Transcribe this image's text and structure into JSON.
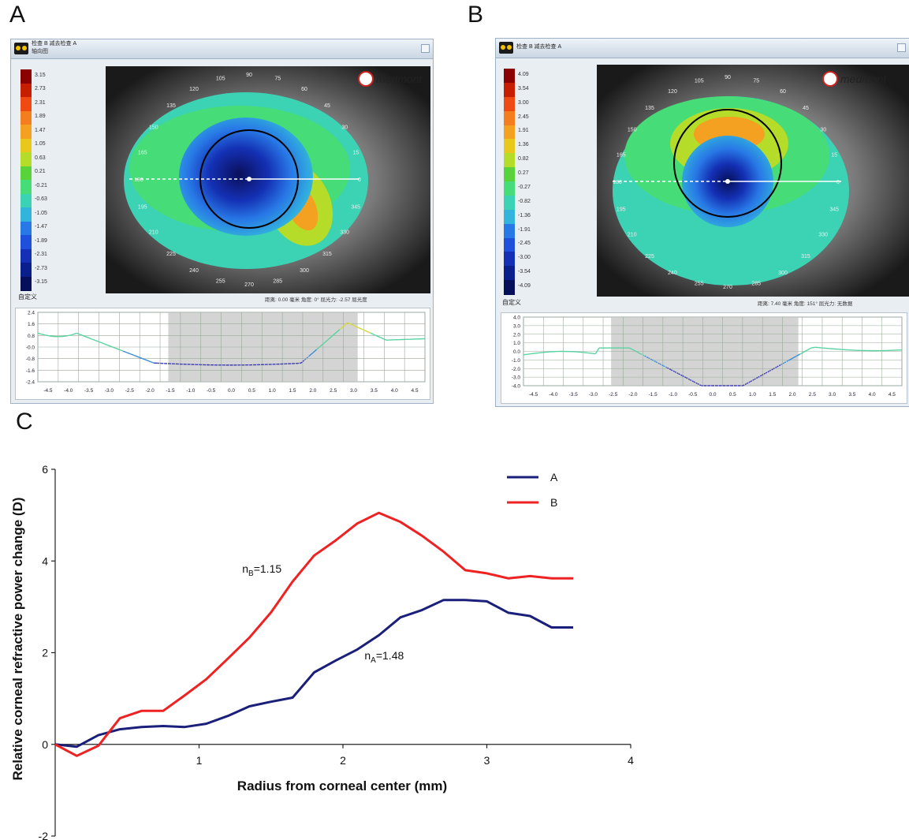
{
  "panels": {
    "A": {
      "letter": "A",
      "window_title": "检查 B 减去检查 A",
      "window_subtitle": "轴向图",
      "logo_text": "medmont",
      "scale_labels": [
        "3.15",
        "2.73",
        "2.31",
        "1.89",
        "1.47",
        "1.05",
        "0.63",
        "0.21",
        "-0.21",
        "-0.63",
        "-1.05",
        "-1.47",
        "-1.89",
        "-2.31",
        "-2.73",
        "-3.15"
      ],
      "custom_label": "自定义",
      "status": "距离: 0.00 毫米  角度: 0°  屈光力: -2.57 屈光度",
      "angle_labels": [
        "90",
        "75",
        "60",
        "45",
        "30",
        "15",
        "0",
        "345",
        "330",
        "315",
        "300",
        "285",
        "270",
        "255",
        "240",
        "225",
        "210",
        "195",
        "180",
        "165",
        "150",
        "135",
        "120",
        "105"
      ],
      "profile_y_ticks": [
        "2.4",
        "1.6",
        "0.8",
        "-0.0",
        "-0.8",
        "-1.6",
        "-2.4"
      ],
      "profile_x_ticks": [
        "-4.5",
        "-4.0",
        "-3.5",
        "-3.0",
        "-2.5",
        "-2.0",
        "-1.5",
        "-1.0",
        "-0.5",
        "0.0",
        "0.5",
        "1.0",
        "1.5",
        "2.0",
        "2.5",
        "3.0",
        "3.5",
        "4.0",
        "4.5"
      ]
    },
    "B": {
      "letter": "B",
      "window_title": "检查 B 减去检查 A",
      "window_subtitle": "",
      "logo_text": "medmont",
      "scale_labels": [
        "4.09",
        "3.54",
        "3.00",
        "2.45",
        "1.91",
        "1.36",
        "0.82",
        "0.27",
        "-0.27",
        "-0.82",
        "-1.36",
        "-1.91",
        "-2.45",
        "-3.00",
        "-3.54",
        "-4.09"
      ],
      "custom_label": "自定义",
      "status": "距离: 7.40 毫米  角度: 151°  屈光力: 无数据",
      "angle_labels": [
        "90",
        "75",
        "60",
        "45",
        "30",
        "15",
        "0",
        "345",
        "330",
        "315",
        "300",
        "285",
        "270",
        "255",
        "240",
        "225",
        "210",
        "195",
        "180",
        "165",
        "150",
        "135",
        "120",
        "105"
      ],
      "profile_y_ticks": [
        "4.0",
        "3.0",
        "2.0",
        "1.0",
        "0.0",
        "-1.0",
        "-2.0",
        "-3.0",
        "-4.0"
      ],
      "profile_x_ticks": [
        "-4.5",
        "-4.0",
        "-3.5",
        "-3.0",
        "-2.5",
        "-2.0",
        "-1.5",
        "-1.0",
        "-0.5",
        "0.0",
        "0.5",
        "1.0",
        "1.5",
        "2.0",
        "2.5",
        "3.0",
        "3.5",
        "4.0",
        "4.5"
      ]
    }
  },
  "colors": {
    "scale": [
      "#8b0000",
      "#c81e00",
      "#f04a14",
      "#f47d1e",
      "#f4a020",
      "#e8c81a",
      "#b4dc28",
      "#5ad23c",
      "#46dc78",
      "#3cd2b4",
      "#32b4dc",
      "#2878e6",
      "#1e50dc",
      "#1430b4",
      "#0a1e8c",
      "#050f5a"
    ],
    "series_A": "#1a1f7a",
    "series_B": "#ee2222"
  },
  "chart_data": {
    "letter": "C",
    "type": "line",
    "xlabel": "Radius from corneal center (mm)",
    "ylabel": "Relative corneal refractive power change (D)",
    "xlim": [
      0,
      4
    ],
    "ylim": [
      -2,
      6
    ],
    "x_ticks": [
      "1",
      "2",
      "3",
      "4"
    ],
    "y_ticks": [
      "-2",
      "0",
      "2",
      "4",
      "6"
    ],
    "grid": false,
    "legend_position": "top-right",
    "series": [
      {
        "name": "A",
        "x": [
          0,
          0.15,
          0.3,
          0.45,
          0.6,
          0.75,
          0.9,
          1.05,
          1.2,
          1.35,
          1.5,
          1.65,
          1.8,
          1.95,
          2.1,
          2.25,
          2.4,
          2.55,
          2.7,
          2.85,
          3.0,
          3.15,
          3.3,
          3.45,
          3.6
        ],
        "y": [
          0,
          -0.05,
          0.2,
          0.33,
          0.38,
          0.4,
          0.38,
          0.45,
          0.62,
          0.83,
          0.93,
          1.02,
          1.57,
          1.83,
          2.07,
          2.38,
          2.77,
          2.93,
          3.15,
          3.15,
          3.12,
          2.87,
          2.8,
          2.55,
          2.55
        ]
      },
      {
        "name": "B",
        "x": [
          0,
          0.15,
          0.3,
          0.45,
          0.6,
          0.75,
          0.9,
          1.05,
          1.2,
          1.35,
          1.5,
          1.65,
          1.8,
          1.95,
          2.1,
          2.25,
          2.4,
          2.55,
          2.7,
          2.85,
          3.0,
          3.15,
          3.3,
          3.45,
          3.6
        ],
        "y": [
          0,
          -0.25,
          -0.03,
          0.57,
          0.73,
          0.73,
          1.07,
          1.42,
          1.87,
          2.33,
          2.88,
          3.55,
          4.12,
          4.45,
          4.82,
          5.05,
          4.85,
          4.55,
          4.2,
          3.8,
          3.73,
          3.62,
          3.67,
          3.62,
          3.62
        ]
      }
    ],
    "annotations": [
      {
        "series": "B",
        "base": "n",
        "sub": "B",
        "value": "=1.15",
        "x": 1.3,
        "y": 3.75
      },
      {
        "series": "A",
        "base": "n",
        "sub": "A",
        "value": "=1.48",
        "x": 2.15,
        "y": 1.85
      }
    ]
  }
}
